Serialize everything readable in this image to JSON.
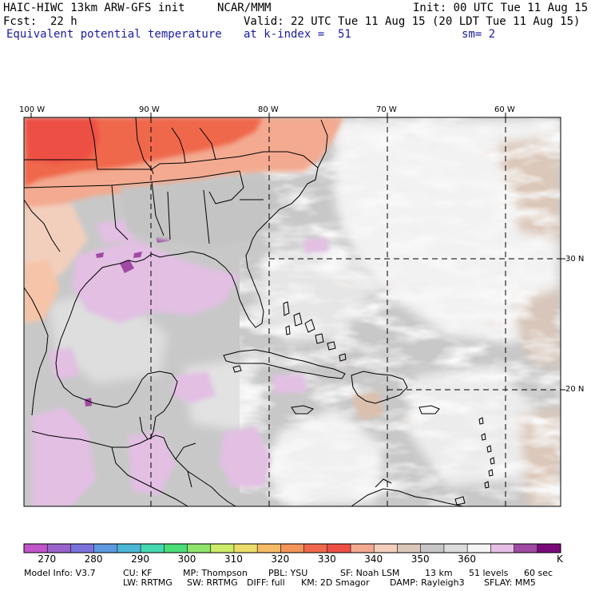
{
  "header": {
    "title": "HAIC-HIWC 13km ARW-GFS init",
    "center": "NCAR/MMM",
    "init": "Init: 00 UTC Tue 11 Aug 15",
    "fcst": "Fcst:  22 h",
    "valid": "Valid: 22 UTC Tue 11 Aug 15 (20 LDT Tue 11 Aug 15)",
    "field": "Equivalent potential temperature",
    "level": "at k-index =  51",
    "smooth": "sm= 2"
  },
  "axes": {
    "lon_labels": [
      "100 W",
      "90 W",
      "80 W",
      "70 W",
      "60 W"
    ],
    "lat_labels": [
      "30 N",
      "20 N"
    ]
  },
  "colorbar": {
    "colors": [
      "#c056c9",
      "#9a64cc",
      "#7a72dc",
      "#5e99e2",
      "#4bb7d6",
      "#44d8b0",
      "#4bdd78",
      "#8ee46a",
      "#ccec68",
      "#ecdc6a",
      "#f6bb66",
      "#f59458",
      "#f0684c",
      "#ee4f45",
      "#f3aa90",
      "#f2cfbd",
      "#dcc8ba",
      "#c7c7c7",
      "#dcdcdc",
      "#f4f4f4",
      "#e7bfe6",
      "#a04aa4",
      "#7a0a7a"
    ],
    "labels": [
      "270",
      "280",
      "290",
      "300",
      "310",
      "320",
      "330",
      "340",
      "350",
      "360"
    ],
    "unit": "K"
  },
  "footer": {
    "line1": [
      "Model Info: V3.7",
      "CU: KF",
      "MP: Thompson",
      "PBL: YSU",
      "SF: Noah LSM",
      "13 km",
      "51 levels",
      "60 sec"
    ],
    "line2": [
      "LW: RRTMG",
      "SW: RRTMG",
      "DIFF: full",
      "KM: 2D Smagor",
      "DAMP: Rayleigh3",
      "SFLAY: MM5"
    ]
  }
}
